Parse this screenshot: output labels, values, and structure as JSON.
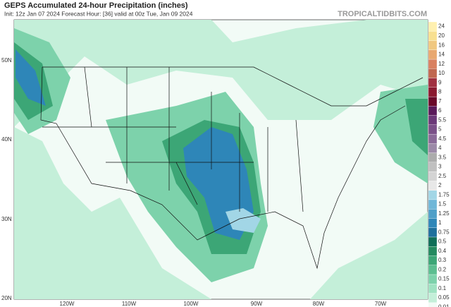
{
  "header": {
    "title": "GEPS Accumulated 24-hour Precipitation (inches)",
    "subtitle": "Init: 12z Jan 07 2024   Forecast Hour: [36]   valid at 00z Tue, Jan 09 2024",
    "brand": "TROPICALTIDBITS.COM"
  },
  "map": {
    "lat_labels": [
      "50N",
      "40N",
      "30N",
      "20N"
    ],
    "lon_labels": [
      "120W",
      "110W",
      "100W",
      "90W",
      "80W",
      "70W"
    ]
  },
  "colorbar": [
    {
      "label": "0.01",
      "color": "#f2fbf6"
    },
    {
      "label": "0.05",
      "color": "#c4efd9"
    },
    {
      "label": "0.1",
      "color": "#9fe2c2"
    },
    {
      "label": "0.15",
      "color": "#7dd2ab"
    },
    {
      "label": "0.2",
      "color": "#5cbe90"
    },
    {
      "label": "0.3",
      "color": "#3ca676"
    },
    {
      "label": "0.4",
      "color": "#248a5f"
    },
    {
      "label": "0.5",
      "color": "#0f6e57"
    },
    {
      "label": "0.75",
      "color": "#1e6f9c"
    },
    {
      "label": "1",
      "color": "#2e86b8"
    },
    {
      "label": "1.25",
      "color": "#4f9fc8"
    },
    {
      "label": "1.5",
      "color": "#70b7d8"
    },
    {
      "label": "1.75",
      "color": "#a2d6e6"
    },
    {
      "label": "2",
      "color": "#e8e8e8"
    },
    {
      "label": "2.5",
      "color": "#d4d4d4"
    },
    {
      "label": "3",
      "color": "#c0c0c0"
    },
    {
      "label": "3.5",
      "color": "#acacac"
    },
    {
      "label": "4",
      "color": "#9c8aa8"
    },
    {
      "label": "4.5",
      "color": "#8a6a98"
    },
    {
      "label": "5",
      "color": "#7a5088"
    },
    {
      "label": "5.5",
      "color": "#6b3878"
    },
    {
      "label": "6",
      "color": "#5a1a5a"
    },
    {
      "label": "7",
      "color": "#6a0a2a"
    },
    {
      "label": "8",
      "color": "#8a1a30"
    },
    {
      "label": "9",
      "color": "#a03040"
    },
    {
      "label": "10",
      "color": "#c06850"
    },
    {
      "label": "12",
      "color": "#d88060"
    },
    {
      "label": "14",
      "color": "#e8a870"
    },
    {
      "label": "16",
      "color": "#f0c880"
    },
    {
      "label": "20",
      "color": "#f8e090"
    },
    {
      "label": "24",
      "color": "#fff0b0"
    }
  ]
}
